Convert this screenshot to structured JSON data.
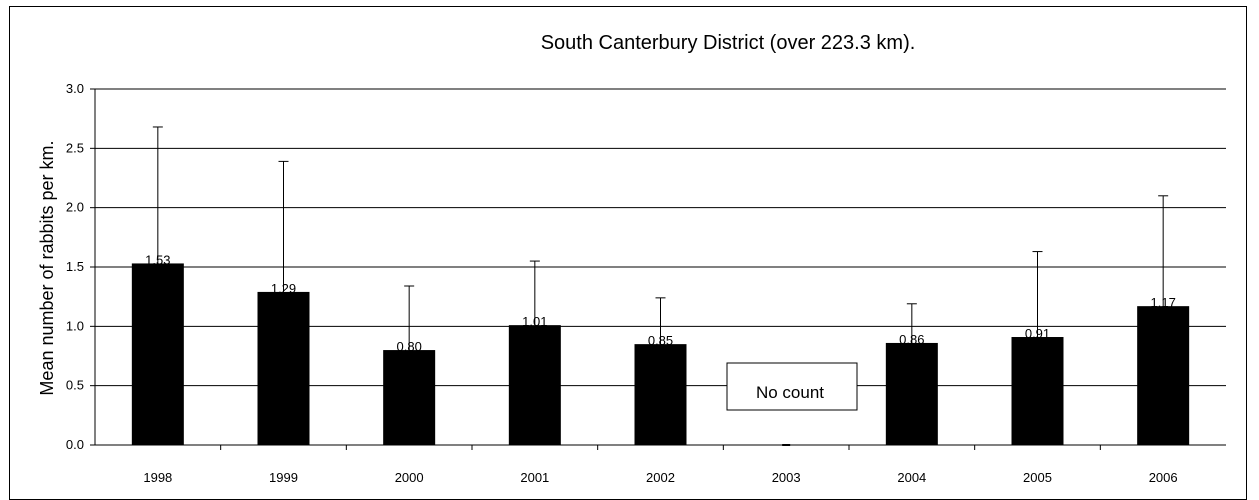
{
  "chart_data": {
    "type": "bar",
    "title": "South Canterbury District (over 223.3 km).",
    "xlabel": "",
    "ylabel": "Mean number of rabbits per km.",
    "ylim": [
      0,
      3.0
    ],
    "y_ticks": [
      "0.0",
      "0.5",
      "1.0",
      "1.5",
      "2.0",
      "2.5",
      "3.0"
    ],
    "grid": "horizontal",
    "categories": [
      "1998",
      "1999",
      "2000",
      "2001",
      "2002",
      "2003",
      "2004",
      "2005",
      "2006"
    ],
    "values": [
      1.53,
      1.29,
      0.8,
      1.01,
      0.85,
      0,
      0.86,
      0.91,
      1.17
    ],
    "value_labels": [
      "1.53",
      "1.29",
      "0.80",
      "1.01",
      "0.85",
      "",
      "0.86",
      "0.91",
      "1.17"
    ],
    "error_upper": [
      2.68,
      2.39,
      1.34,
      1.55,
      1.24,
      0,
      1.19,
      1.63,
      2.1
    ],
    "bar_color": "#000000",
    "annotation": "No count"
  }
}
